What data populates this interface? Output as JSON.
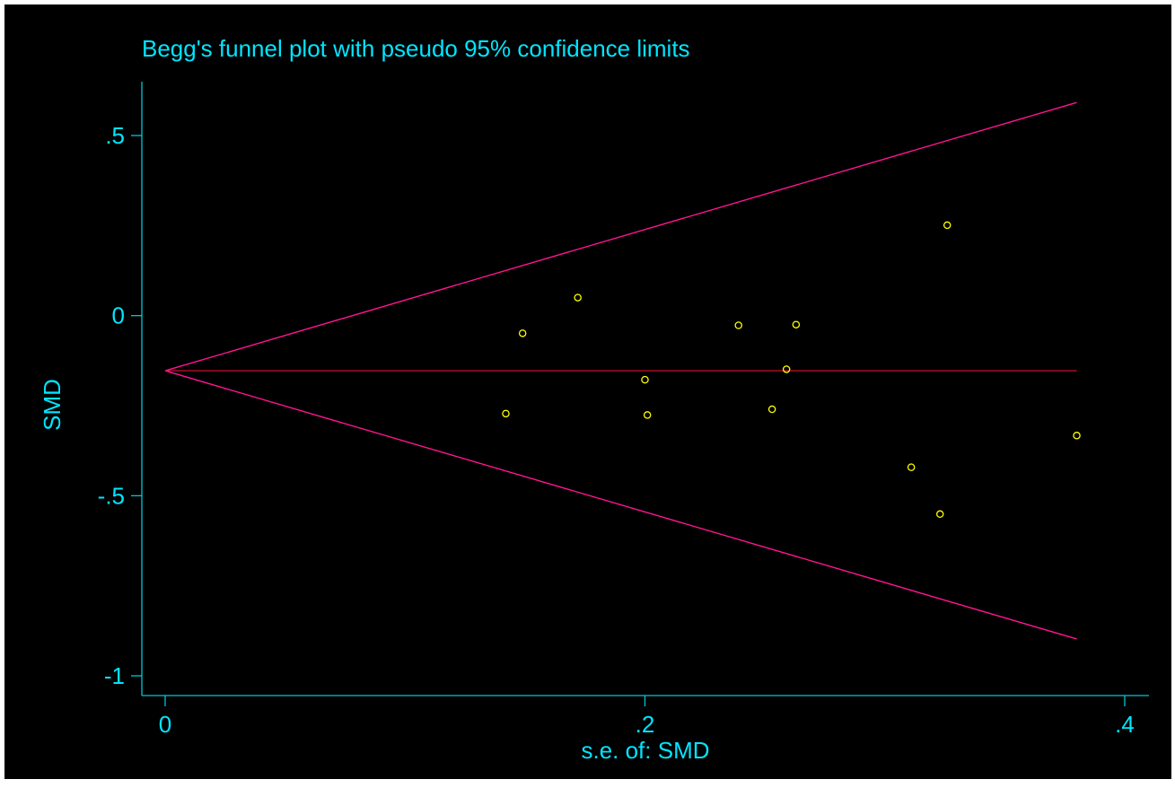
{
  "chart_data": {
    "type": "scatter",
    "title": "Begg's funnel plot with pseudo 95% confidence limits",
    "xlabel": "s.e. of: SMD",
    "ylabel": "SMD",
    "xlim": [
      0,
      0.4
    ],
    "ylim": [
      -1,
      0.5
    ],
    "xticks": [
      {
        "value": 0,
        "label": "0"
      },
      {
        "value": 0.2,
        "label": ".2"
      },
      {
        "value": 0.4,
        "label": ".4"
      }
    ],
    "yticks": [
      {
        "value": -1,
        "label": "-1"
      },
      {
        "value": -0.5,
        "label": "-.5"
      },
      {
        "value": 0,
        "label": "0"
      },
      {
        "value": 0.5,
        "label": ".5"
      }
    ],
    "pooled_estimate": -0.153,
    "limit_z": 1.96,
    "se_max": 0.38,
    "points": [
      {
        "x": 0.142,
        "y": -0.272
      },
      {
        "x": 0.149,
        "y": -0.049
      },
      {
        "x": 0.172,
        "y": 0.05
      },
      {
        "x": 0.2,
        "y": -0.178
      },
      {
        "x": 0.201,
        "y": -0.276
      },
      {
        "x": 0.239,
        "y": -0.027
      },
      {
        "x": 0.253,
        "y": -0.26
      },
      {
        "x": 0.259,
        "y": -0.149
      },
      {
        "x": 0.263,
        "y": -0.025
      },
      {
        "x": 0.311,
        "y": -0.421
      },
      {
        "x": 0.323,
        "y": -0.551
      },
      {
        "x": 0.326,
        "y": 0.251
      },
      {
        "x": 0.38,
        "y": -0.333
      }
    ],
    "grid": false,
    "colors": {
      "background": "#000000",
      "frame": "#ffffff",
      "text": "#00e5ff",
      "axis": "#00c8d8",
      "limits": "#ff1493",
      "pooled_line": "#e01530",
      "points": "#ffff00"
    }
  }
}
